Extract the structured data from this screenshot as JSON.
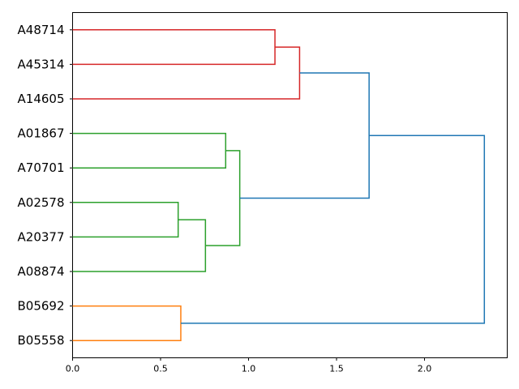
{
  "chart_data": {
    "type": "dendrogram",
    "orientation": "horizontal",
    "leaves": [
      "A48714",
      "A45314",
      "A14605",
      "A01867",
      "A70701",
      "A02578",
      "A20377",
      "A08874",
      "B05692",
      "B05558"
    ],
    "x_ticks": [
      "0.0",
      "0.5",
      "1.0",
      "1.5",
      "2.0"
    ],
    "xlim": [
      0,
      2.47
    ],
    "links": [
      {
        "id": "c1",
        "children": [
          "A48714",
          "A45314"
        ],
        "height": 1.15,
        "color": "#d62728"
      },
      {
        "id": "c2",
        "children": [
          "c1",
          "A14605"
        ],
        "height": 1.29,
        "color": "#d62728"
      },
      {
        "id": "c3",
        "children": [
          "A01867",
          "A70701"
        ],
        "height": 0.87,
        "color": "#2ca02c"
      },
      {
        "id": "c4",
        "children": [
          "A02578",
          "A20377"
        ],
        "height": 0.6,
        "color": "#2ca02c"
      },
      {
        "id": "c5",
        "children": [
          "c4",
          "A08874"
        ],
        "height": 0.755,
        "color": "#2ca02c"
      },
      {
        "id": "c6",
        "children": [
          "c3",
          "c5"
        ],
        "height": 0.95,
        "color": "#2ca02c"
      },
      {
        "id": "c7",
        "children": [
          "c2",
          "c6"
        ],
        "height": 1.685,
        "color": "#1f77b4"
      },
      {
        "id": "c8",
        "children": [
          "B05692",
          "B05558"
        ],
        "height": 0.615,
        "color": "#ff7f0e"
      },
      {
        "id": "c9",
        "children": [
          "c7",
          "c8"
        ],
        "height": 2.34,
        "color": "#1f77b4"
      }
    ],
    "grid": false
  }
}
